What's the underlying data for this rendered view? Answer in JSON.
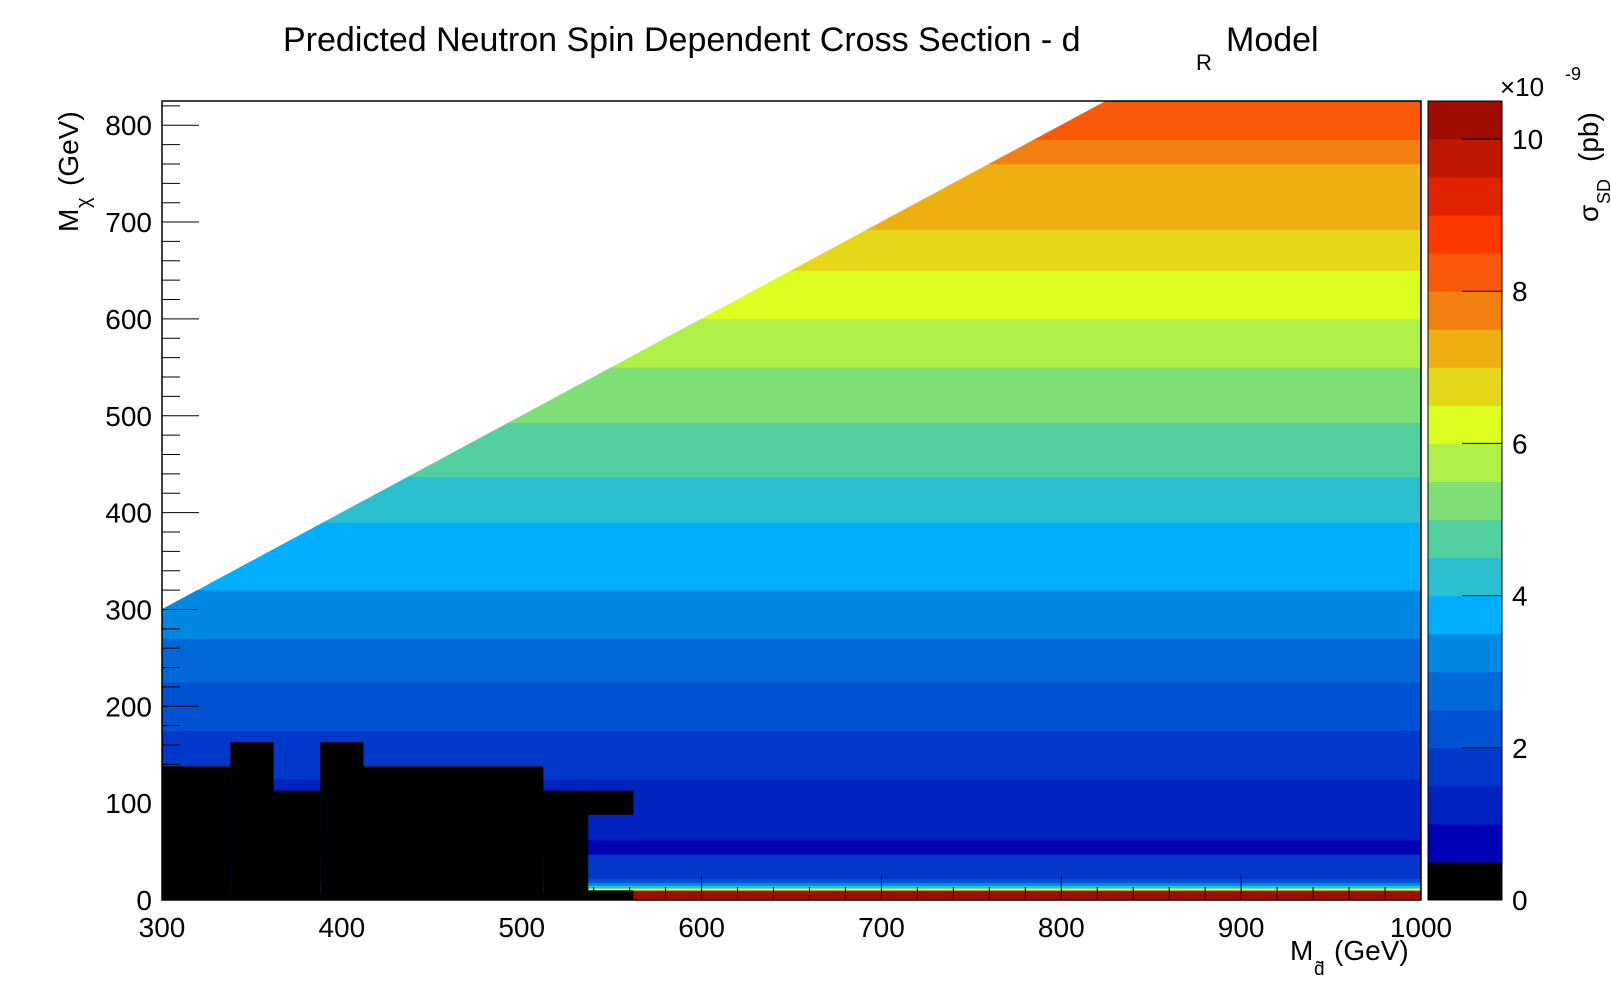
{
  "chart_data": {
    "type": "heatmap",
    "title": "Predicted Neutron Spin Dependent Cross Section - d",
    "title_subscript": "R",
    "title_suffix": "Model",
    "xlabel_main": "M",
    "xlabel_sub": "d̃",
    "xlabel_unit": "(GeV)",
    "ylabel_main": "M",
    "ylabel_sub": "χ",
    "ylabel_unit": "(GeV)",
    "zlabel_main": "σ",
    "zlabel_sub": "SD",
    "zlabel_unit": "(pb)",
    "z_multiplier_base": "×10",
    "z_multiplier_exp": "-9",
    "xlim": [
      300,
      1000
    ],
    "ylim": [
      0,
      825
    ],
    "zlim": [
      0,
      10.5
    ],
    "x_ticks": [
      "300",
      "400",
      "500",
      "600",
      "700",
      "800",
      "900",
      "1000"
    ],
    "y_ticks": [
      "0",
      "100",
      "200",
      "300",
      "400",
      "500",
      "600",
      "700",
      "800"
    ],
    "z_ticks": [
      "0",
      "2",
      "4",
      "6",
      "8",
      "10"
    ],
    "palette": [
      "#000000",
      "#0000b4",
      "#0022c0",
      "#0038c9",
      "#0052d2",
      "#0068d9",
      "#0088e2",
      "#00b0ff",
      "#2ac0d0",
      "#52d0a0",
      "#7ee074",
      "#aef048",
      "#dcff20",
      "#e6d818",
      "#eeb010",
      "#f28010",
      "#fa5a08",
      "#ff3800",
      "#e02400",
      "#c01800",
      "#a00c00"
    ],
    "diagonal_boundary": {
      "x": [
        300,
        825
      ],
      "y": [
        300,
        825
      ]
    },
    "bands": [
      {
        "y0": 0,
        "y1": 10,
        "z": 10.4
      },
      {
        "y0": 10,
        "y1": 12,
        "z": 6.2
      },
      {
        "y0": 12,
        "y1": 15,
        "z": 4.2
      },
      {
        "y0": 15,
        "y1": 18,
        "z": 3.1
      },
      {
        "y0": 18,
        "y1": 22,
        "z": 2.2
      },
      {
        "y0": 22,
        "y1": 47,
        "z": 1.5
      },
      {
        "y0": 47,
        "y1": 62,
        "z": 0.7
      },
      {
        "y0": 62,
        "y1": 125,
        "z": 1.1
      },
      {
        "y0": 125,
        "y1": 175,
        "z": 1.9
      },
      {
        "y0": 175,
        "y1": 225,
        "z": 2.4
      },
      {
        "y0": 225,
        "y1": 270,
        "z": 2.8
      },
      {
        "y0": 270,
        "y1": 320,
        "z": 3.3
      },
      {
        "y0": 320,
        "y1": 390,
        "z": 3.9
      },
      {
        "y0": 390,
        "y1": 437,
        "z": 4.3
      },
      {
        "y0": 437,
        "y1": 493,
        "z": 4.8
      },
      {
        "y0": 493,
        "y1": 550,
        "z": 5.3
      },
      {
        "y0": 550,
        "y1": 600,
        "z": 5.8
      },
      {
        "y0": 600,
        "y1": 650,
        "z": 6.3
      },
      {
        "y0": 650,
        "y1": 692,
        "z": 6.8
      },
      {
        "y0": 692,
        "y1": 760,
        "z": 7.3
      },
      {
        "y0": 760,
        "y1": 785,
        "z": 7.8
      },
      {
        "y0": 785,
        "y1": 825,
        "z": 8.3
      }
    ],
    "excluded_region": [
      {
        "x0": 300,
        "x1": 338,
        "y1": 138
      },
      {
        "x0": 338,
        "x1": 362,
        "y1": 163
      },
      {
        "x0": 362,
        "x1": 388,
        "y1": 113
      },
      {
        "x0": 388,
        "x1": 412,
        "y1": 163
      },
      {
        "x0": 412,
        "x1": 512,
        "y1": 138
      },
      {
        "x0": 512,
        "x1": 537,
        "y1": 113
      },
      {
        "x0": 537,
        "x1": 562,
        "y1": 113,
        "y_gap": [
          10,
          88
        ]
      },
      {
        "x0": 562,
        "x1": 1000,
        "y1": 0
      }
    ]
  }
}
